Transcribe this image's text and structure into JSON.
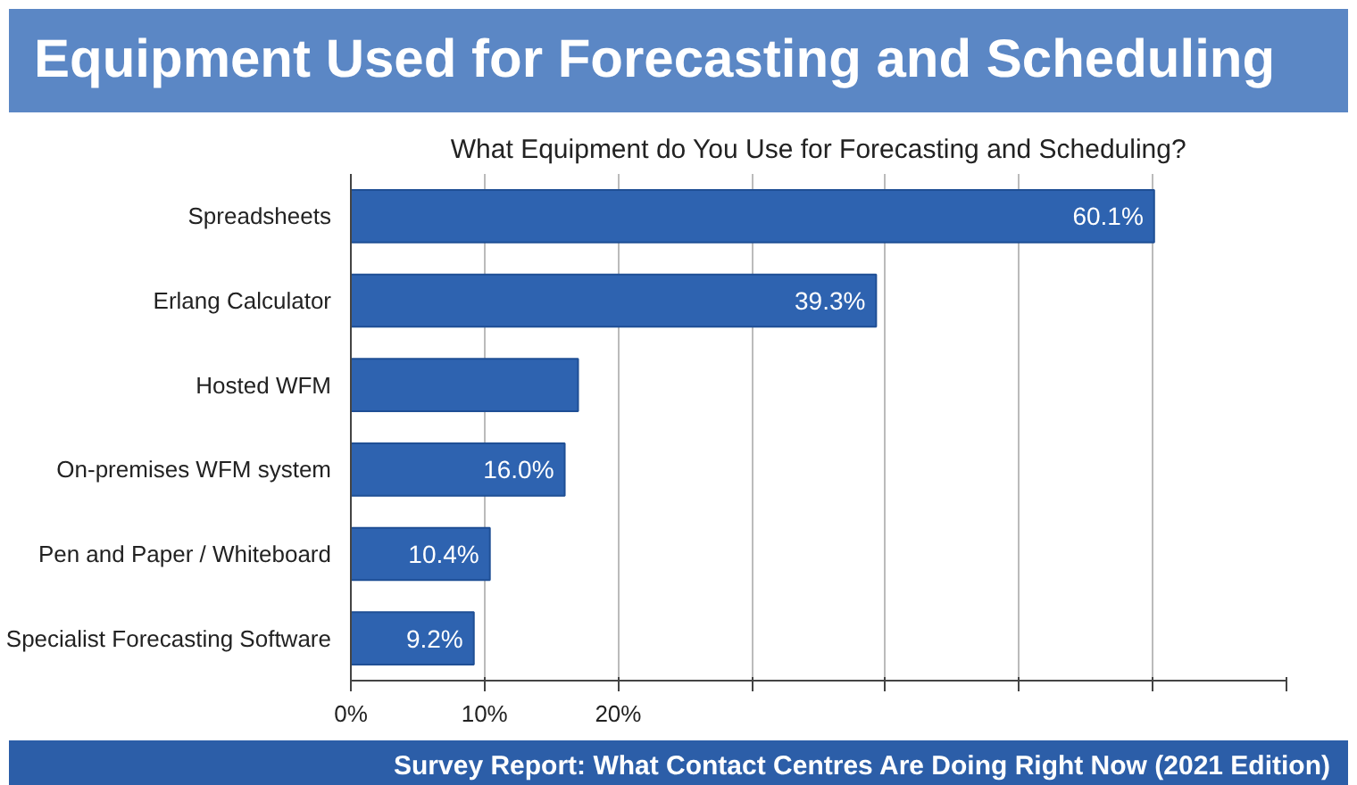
{
  "chart_data": {
    "type": "bar",
    "orientation": "horizontal",
    "title": "Equipment Used for Forecasting and Scheduling",
    "subtitle": "What Equipment do You Use for Forecasting and Scheduling?",
    "categories": [
      "Spreadsheets",
      "Erlang Calculator",
      "Hosted WFM",
      "On-premises WFM system",
      "Pen and Paper / Whiteboard",
      "Specialist Forecasting Software"
    ],
    "values": [
      60.1,
      39.3,
      17,
      16.0,
      10.4,
      9.2
    ],
    "color": "#2e63b0",
    "value_labels": [
      "60.1%",
      "39.3%",
      null,
      "16.0%",
      "10.4%",
      "9.2%"
    ],
    "xlim": [
      0,
      70
    ],
    "xticks": [
      {
        "value": 0,
        "label": "0%"
      },
      {
        "value": 10,
        "label": "10%"
      },
      {
        "value": 20,
        "label": "20%"
      },
      {
        "value": 30,
        "label": null
      },
      {
        "value": 40,
        "label": null
      },
      {
        "value": 50,
        "label": null
      },
      {
        "value": 60,
        "label": null
      },
      {
        "value": 70,
        "label": null
      }
    ],
    "grid": "x",
    "annotations": [
      "Survey Report: What Contact Centres Are Doing Right Now (2021 Edition)"
    ]
  }
}
